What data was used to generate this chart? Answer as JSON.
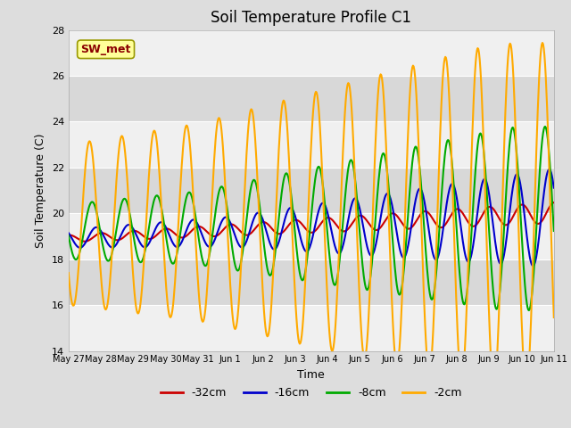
{
  "title": "Soil Temperature Profile C1",
  "xlabel": "Time",
  "ylabel": "Soil Temperature (C)",
  "ylim": [
    14,
    28
  ],
  "yticks": [
    14,
    16,
    18,
    20,
    22,
    24,
    26,
    28
  ],
  "xtick_labels": [
    "May 27",
    "May 28",
    "May 29",
    "May 30",
    "May 31",
    "Jun 1",
    "Jun 2",
    "Jun 3",
    "Jun 4",
    "Jun 5",
    "Jun 6",
    "Jun 7",
    "Jun 8",
    "Jun 9",
    "Jun 10",
    "Jun 11"
  ],
  "series": {
    "-32cm": {
      "color": "#cc0000",
      "linewidth": 1.5
    },
    "-16cm": {
      "color": "#0000cc",
      "linewidth": 1.5
    },
    "-8cm": {
      "color": "#00aa00",
      "linewidth": 1.5
    },
    "-2cm": {
      "color": "#ffaa00",
      "linewidth": 1.5
    }
  },
  "annotation_text": "SW_met",
  "annotation_color": "#8b0000",
  "annotation_bg": "#ffff99",
  "annotation_edge": "#999900",
  "fig_bg": "#dddddd",
  "plot_bg_light": "#f0f0f0",
  "plot_bg_dark": "#d8d8d8",
  "grid_color": "#ffffff",
  "title_fontsize": 12,
  "axis_label_fontsize": 9,
  "tick_fontsize": 8
}
